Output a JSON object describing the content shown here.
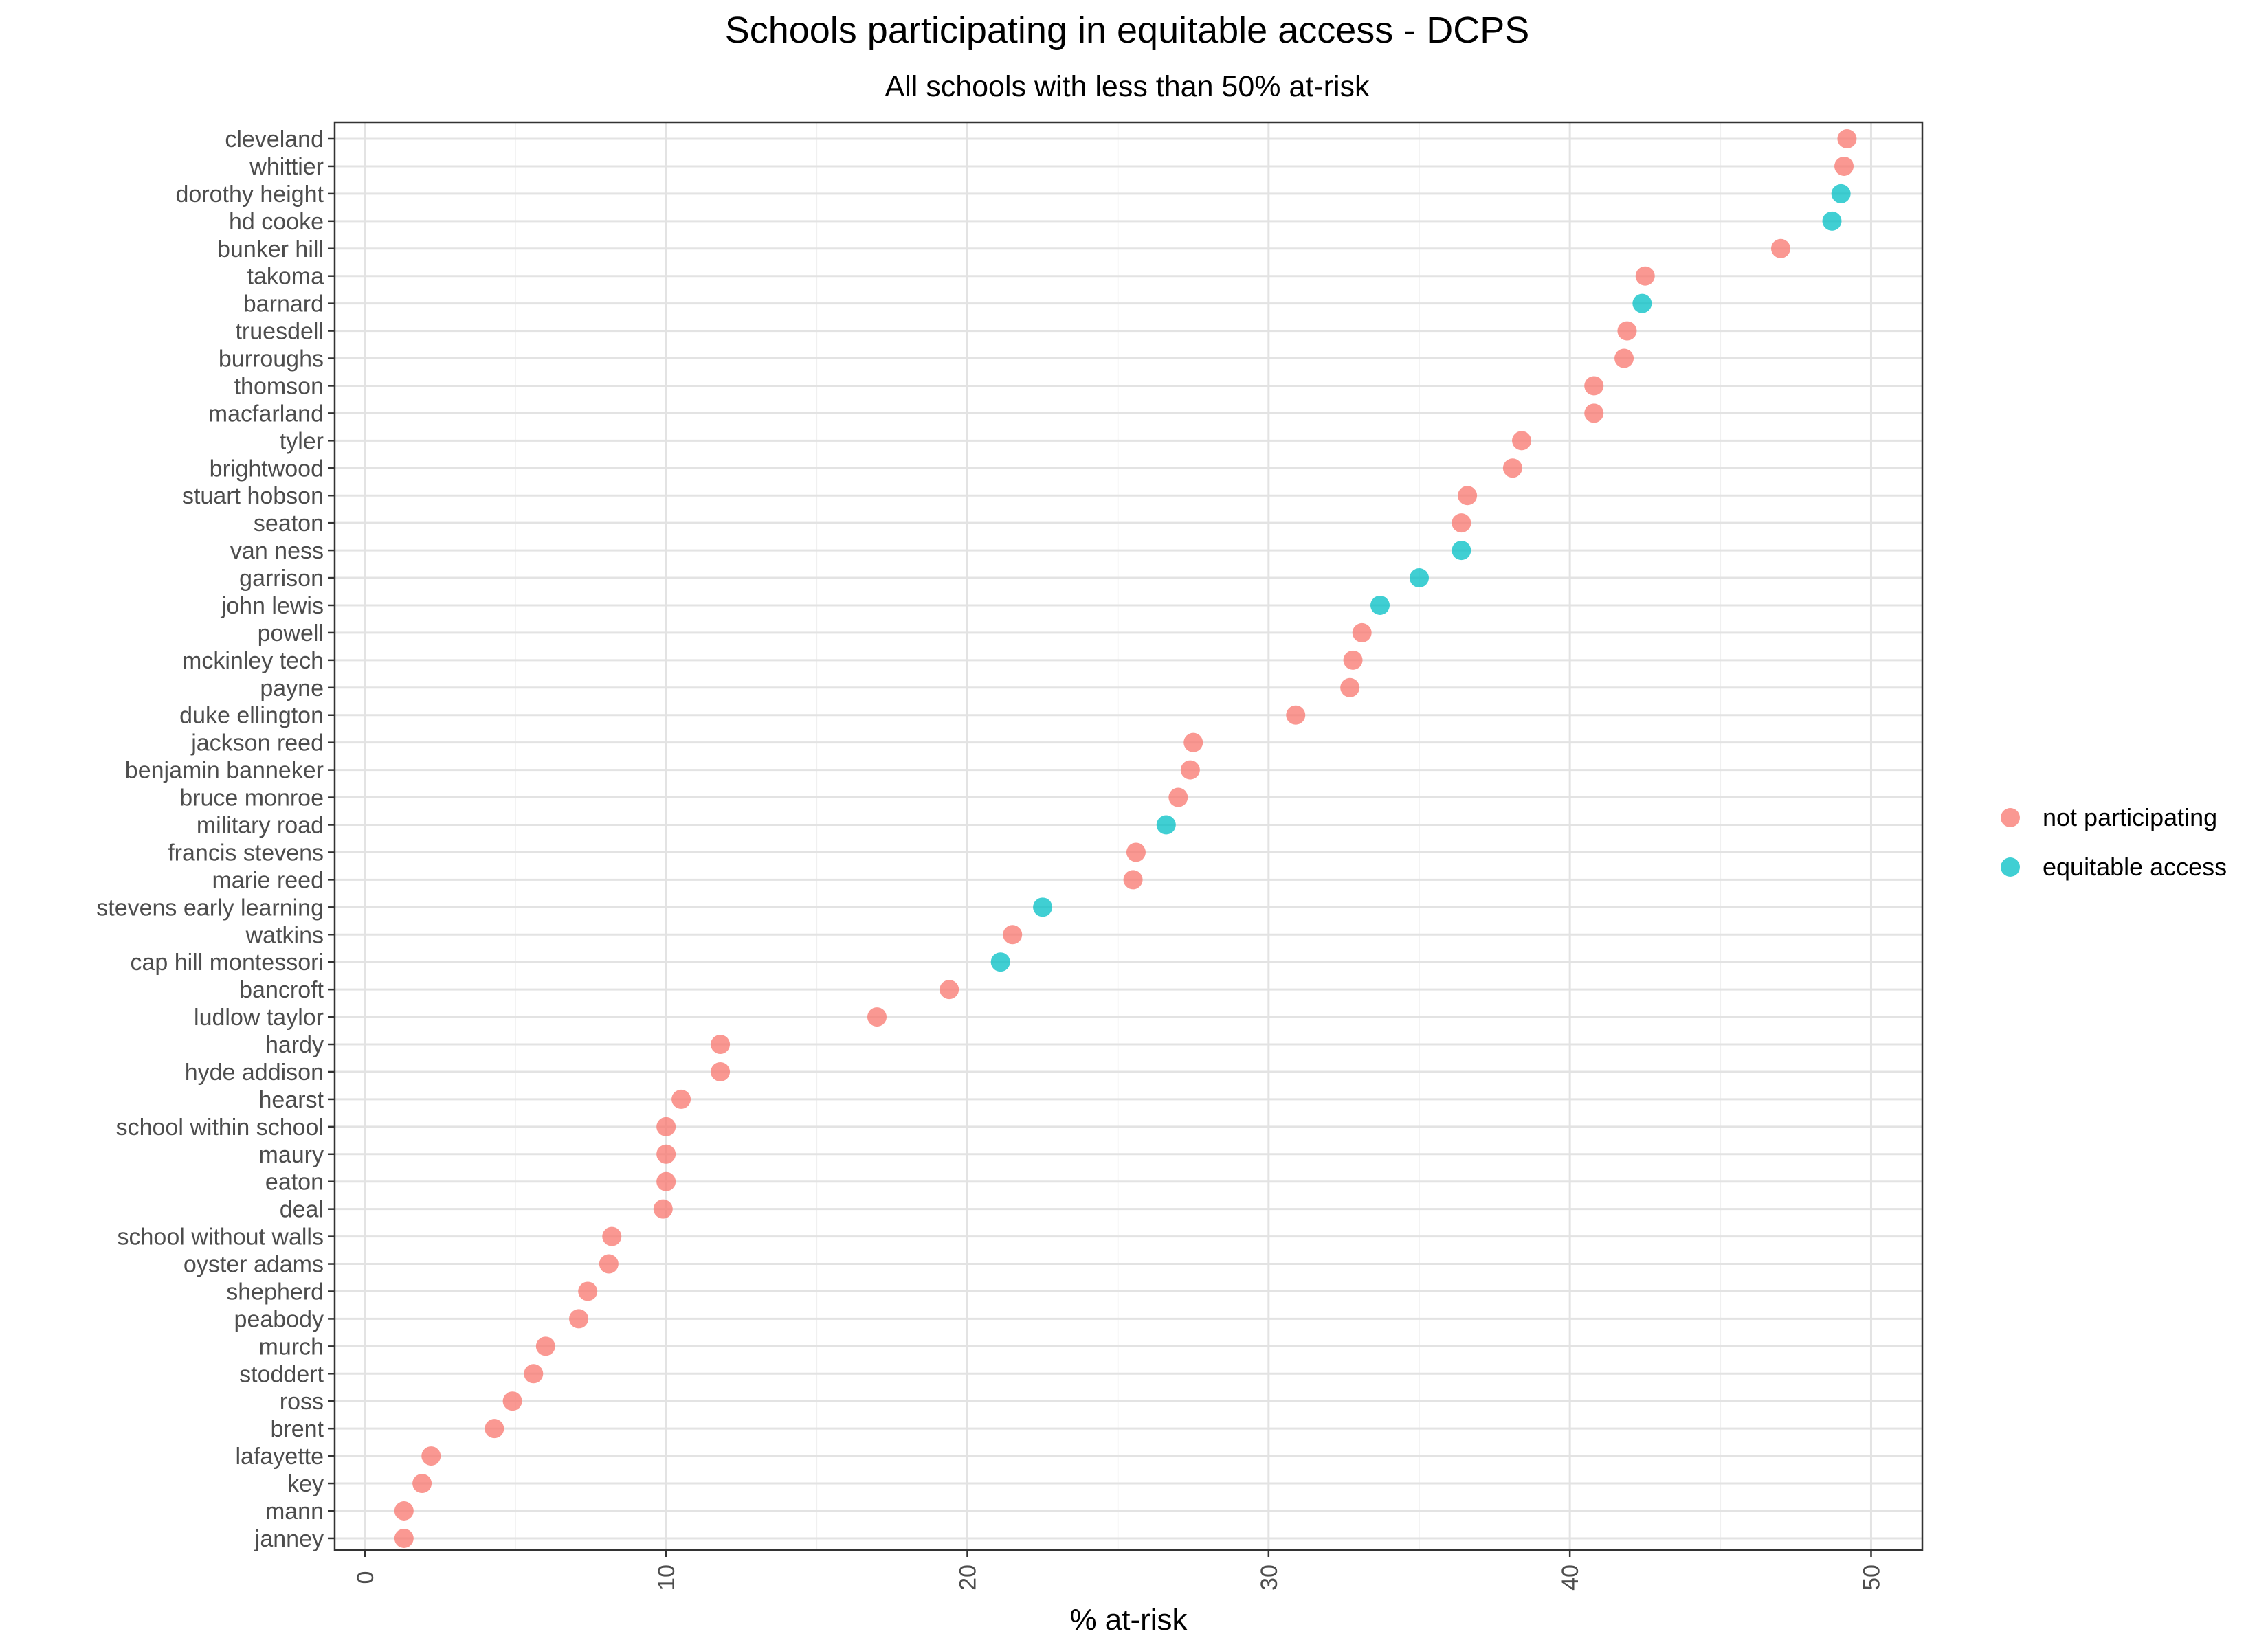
{
  "chart_data": {
    "type": "scatter",
    "title": "Schools participating in equitable access - DCPS",
    "subtitle": "All schools with less than 50% at-risk",
    "xlabel": "% at-risk",
    "ylabel": "",
    "xlim": [
      -1,
      51.7
    ],
    "x_ticks": [
      0,
      10,
      20,
      30,
      40,
      50
    ],
    "grid": true,
    "legend_position": "right",
    "series": [
      {
        "name": "not participating",
        "color": "#F8766D"
      },
      {
        "name": "equitable access",
        "color": "#00BFC4"
      }
    ],
    "points": [
      {
        "school": "cleveland",
        "value": 49.2,
        "group": "not participating"
      },
      {
        "school": "whittier",
        "value": 49.1,
        "group": "not participating"
      },
      {
        "school": "dorothy height",
        "value": 49.0,
        "group": "equitable access"
      },
      {
        "school": "hd cooke",
        "value": 48.7,
        "group": "equitable access"
      },
      {
        "school": "bunker hill",
        "value": 47.0,
        "group": "not participating"
      },
      {
        "school": "takoma",
        "value": 42.5,
        "group": "not participating"
      },
      {
        "school": "barnard",
        "value": 42.4,
        "group": "equitable access"
      },
      {
        "school": "truesdell",
        "value": 41.9,
        "group": "not participating"
      },
      {
        "school": "burroughs",
        "value": 41.8,
        "group": "not participating"
      },
      {
        "school": "thomson",
        "value": 40.8,
        "group": "not participating"
      },
      {
        "school": "macfarland",
        "value": 40.8,
        "group": "not participating"
      },
      {
        "school": "tyler",
        "value": 38.4,
        "group": "not participating"
      },
      {
        "school": "brightwood",
        "value": 38.1,
        "group": "not participating"
      },
      {
        "school": "stuart hobson",
        "value": 36.6,
        "group": "not participating"
      },
      {
        "school": "seaton",
        "value": 36.4,
        "group": "not participating"
      },
      {
        "school": "van ness",
        "value": 36.4,
        "group": "equitable access"
      },
      {
        "school": "garrison",
        "value": 35.0,
        "group": "equitable access"
      },
      {
        "school": "john lewis",
        "value": 33.7,
        "group": "equitable access"
      },
      {
        "school": "powell",
        "value": 33.1,
        "group": "not participating"
      },
      {
        "school": "mckinley tech",
        "value": 32.8,
        "group": "not participating"
      },
      {
        "school": "payne",
        "value": 32.7,
        "group": "not participating"
      },
      {
        "school": "duke ellington",
        "value": 30.9,
        "group": "not participating"
      },
      {
        "school": "jackson reed",
        "value": 27.5,
        "group": "not participating"
      },
      {
        "school": "benjamin banneker",
        "value": 27.4,
        "group": "not participating"
      },
      {
        "school": "bruce monroe",
        "value": 27.0,
        "group": "not participating"
      },
      {
        "school": "military road",
        "value": 26.6,
        "group": "equitable access"
      },
      {
        "school": "francis stevens",
        "value": 25.6,
        "group": "not participating"
      },
      {
        "school": "marie reed",
        "value": 25.5,
        "group": "not participating"
      },
      {
        "school": "stevens early learning",
        "value": 22.5,
        "group": "equitable access"
      },
      {
        "school": "watkins",
        "value": 21.5,
        "group": "not participating"
      },
      {
        "school": "cap hill montessori",
        "value": 21.1,
        "group": "equitable access"
      },
      {
        "school": "bancroft",
        "value": 19.4,
        "group": "not participating"
      },
      {
        "school": "ludlow taylor",
        "value": 17.0,
        "group": "not participating"
      },
      {
        "school": "hardy",
        "value": 11.8,
        "group": "not participating"
      },
      {
        "school": "hyde addison",
        "value": 11.8,
        "group": "not participating"
      },
      {
        "school": "hearst",
        "value": 10.5,
        "group": "not participating"
      },
      {
        "school": "school within school",
        "value": 10.0,
        "group": "not participating"
      },
      {
        "school": "maury",
        "value": 10.0,
        "group": "not participating"
      },
      {
        "school": "eaton",
        "value": 10.0,
        "group": "not participating"
      },
      {
        "school": "deal",
        "value": 9.9,
        "group": "not participating"
      },
      {
        "school": "school without walls",
        "value": 8.2,
        "group": "not participating"
      },
      {
        "school": "oyster adams",
        "value": 8.1,
        "group": "not participating"
      },
      {
        "school": "shepherd",
        "value": 7.4,
        "group": "not participating"
      },
      {
        "school": "peabody",
        "value": 7.1,
        "group": "not participating"
      },
      {
        "school": "murch",
        "value": 6.0,
        "group": "not participating"
      },
      {
        "school": "stoddert",
        "value": 5.6,
        "group": "not participating"
      },
      {
        "school": "ross",
        "value": 4.9,
        "group": "not participating"
      },
      {
        "school": "brent",
        "value": 4.3,
        "group": "not participating"
      },
      {
        "school": "lafayette",
        "value": 2.2,
        "group": "not participating"
      },
      {
        "school": "key",
        "value": 1.9,
        "group": "not participating"
      },
      {
        "school": "mann",
        "value": 1.3,
        "group": "not participating"
      },
      {
        "school": "janney",
        "value": 1.3,
        "group": "not participating"
      }
    ]
  }
}
